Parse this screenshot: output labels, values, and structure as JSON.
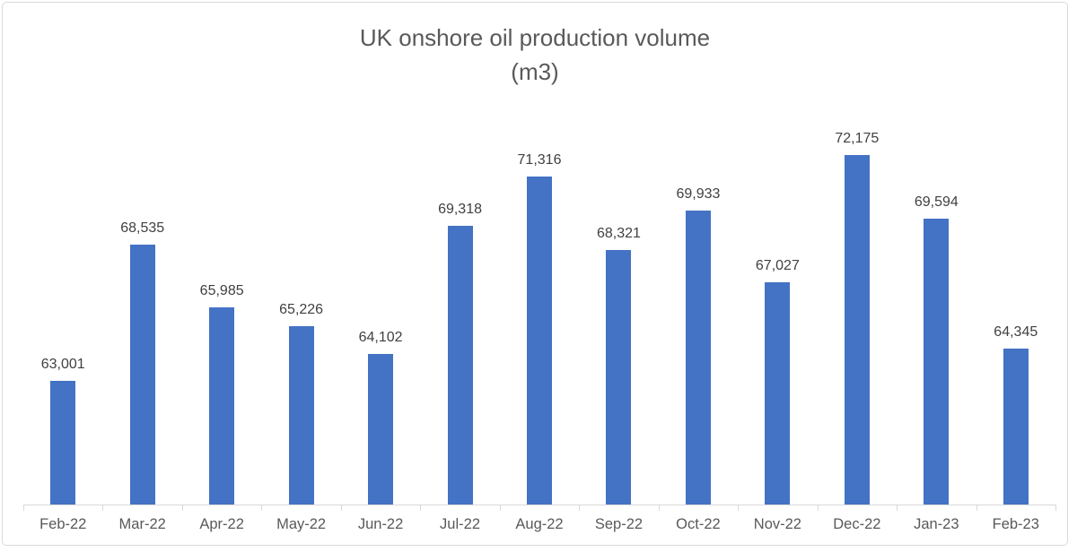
{
  "chart_data": {
    "type": "bar",
    "title": "UK onshore oil production volume",
    "title_line2": "(m3)",
    "categories": [
      "Feb-22",
      "Mar-22",
      "Apr-22",
      "May-22",
      "Jun-22",
      "Jul-22",
      "Aug-22",
      "Sep-22",
      "Oct-22",
      "Nov-22",
      "Dec-22",
      "Jan-23",
      "Feb-23"
    ],
    "values": [
      63001,
      68535,
      65985,
      65226,
      64102,
      69318,
      71316,
      68321,
      69933,
      67027,
      72175,
      69594,
      64345
    ],
    "data_labels": [
      "63,001",
      "68,535",
      "65,985",
      "65,226",
      "64,102",
      "69,318",
      "71,316",
      "68,321",
      "69,933",
      "67,027",
      "72,175",
      "69,594",
      "64,345"
    ],
    "xlabel": "",
    "ylabel": "",
    "ylim": [
      58000,
      74000
    ],
    "grid": false,
    "legend": "none",
    "colors": {
      "bar": "#4472C4",
      "title": "#595959",
      "data_label": "#404040",
      "axis_label": "#595959",
      "axis_line": "#D9D9D9",
      "frame_border": "#D9D9D9",
      "background": "#FFFFFF"
    }
  }
}
